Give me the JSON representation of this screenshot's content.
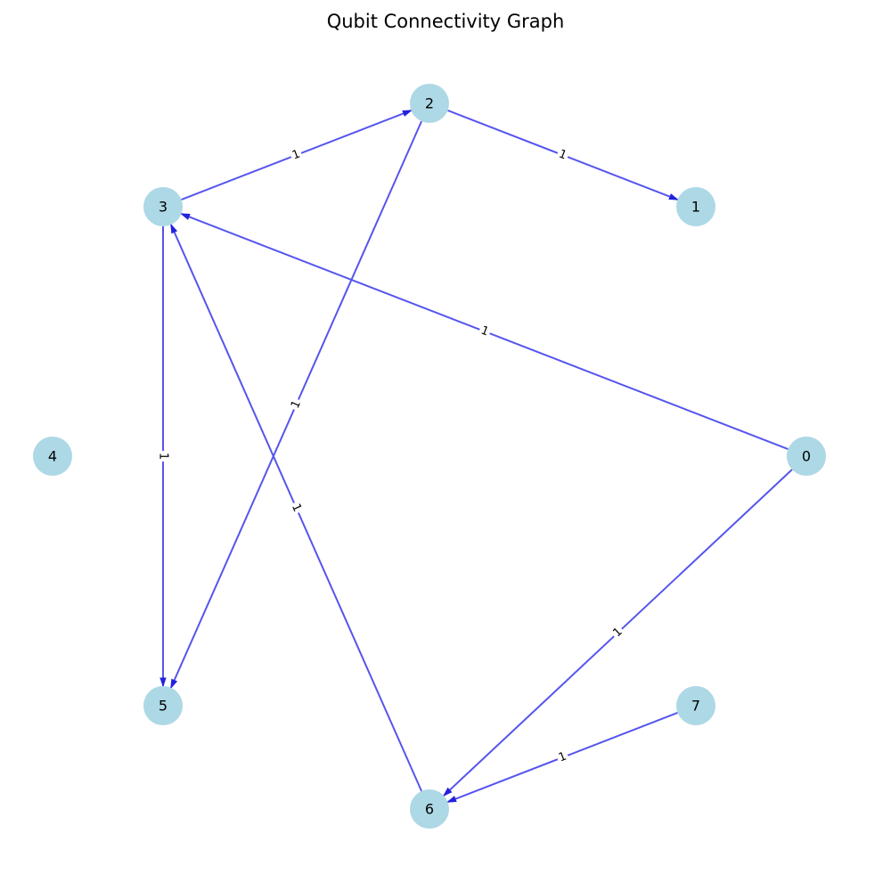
{
  "title": "Qubit Connectivity Graph",
  "colors": {
    "node_fill": "#add8e6",
    "edge": "#5555ee",
    "arrow": "#2222dd",
    "label_bg": "#ffffff"
  },
  "nodes": [
    {
      "id": "0",
      "label": "0"
    },
    {
      "id": "1",
      "label": "1"
    },
    {
      "id": "2",
      "label": "2"
    },
    {
      "id": "3",
      "label": "3"
    },
    {
      "id": "4",
      "label": "4"
    },
    {
      "id": "5",
      "label": "5"
    },
    {
      "id": "6",
      "label": "6"
    },
    {
      "id": "7",
      "label": "7"
    }
  ],
  "edges": [
    {
      "from": "3",
      "to": "2",
      "label": "1"
    },
    {
      "from": "2",
      "to": "1",
      "label": "1"
    },
    {
      "from": "2",
      "to": "5",
      "label": "1"
    },
    {
      "from": "0",
      "to": "3",
      "label": "1"
    },
    {
      "from": "3",
      "to": "5",
      "label": "1"
    },
    {
      "from": "6",
      "to": "3",
      "label": "1"
    },
    {
      "from": "0",
      "to": "6",
      "label": "1"
    },
    {
      "from": "7",
      "to": "6",
      "label": "1"
    }
  ]
}
